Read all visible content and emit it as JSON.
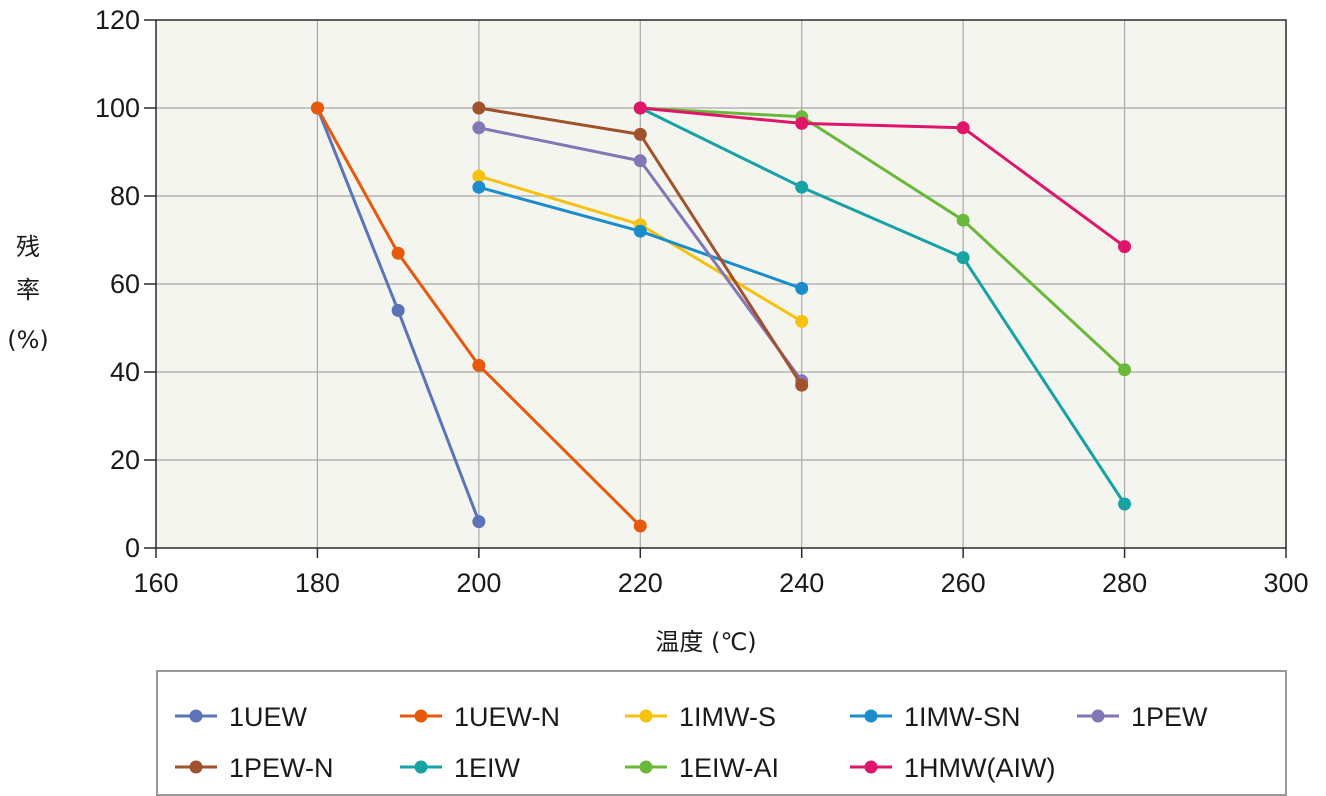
{
  "chart_data": {
    "type": "line",
    "xlabel": "温度 (℃)",
    "ylabel_chars": [
      "残",
      "率",
      "(%)"
    ],
    "xlim": [
      160,
      300
    ],
    "ylim": [
      0,
      120
    ],
    "x_ticks": [
      160,
      180,
      200,
      220,
      240,
      260,
      280,
      300
    ],
    "y_ticks": [
      0,
      20,
      40,
      60,
      80,
      100,
      120
    ],
    "grid": true,
    "legend_position": "bottom",
    "background_color": "#f5f5f0",
    "series": [
      {
        "name": "1UEW",
        "color": "#5b74b8",
        "points": [
          [
            180,
            100
          ],
          [
            190,
            54
          ],
          [
            200,
            6
          ]
        ]
      },
      {
        "name": "1UEW-N",
        "color": "#e8590c",
        "points": [
          [
            180,
            100
          ],
          [
            190,
            67
          ],
          [
            200,
            41.5
          ],
          [
            220,
            5
          ]
        ]
      },
      {
        "name": "1IMW-S",
        "color": "#f7c20c",
        "points": [
          [
            200,
            84.5
          ],
          [
            220,
            73.5
          ],
          [
            240,
            51.5
          ]
        ]
      },
      {
        "name": "1IMW-SN",
        "color": "#1b8dcc",
        "points": [
          [
            200,
            82
          ],
          [
            220,
            72
          ],
          [
            240,
            59
          ]
        ]
      },
      {
        "name": "1PEW",
        "color": "#8276b5",
        "points": [
          [
            200,
            95.5
          ],
          [
            220,
            88
          ],
          [
            240,
            38
          ]
        ]
      },
      {
        "name": "1PEW-N",
        "color": "#a0522d",
        "points": [
          [
            200,
            100
          ],
          [
            220,
            94
          ],
          [
            240,
            37
          ]
        ]
      },
      {
        "name": "1EIW",
        "color": "#17a2a4",
        "points": [
          [
            220,
            100
          ],
          [
            240,
            82
          ],
          [
            260,
            66
          ],
          [
            280,
            10
          ]
        ]
      },
      {
        "name": "1EIW-AI",
        "color": "#6ab83a",
        "points": [
          [
            220,
            100
          ],
          [
            240,
            98
          ],
          [
            260,
            74.5
          ],
          [
            280,
            40.5
          ]
        ]
      },
      {
        "name": "1HMW(AIW)",
        "color": "#e0156a",
        "points": [
          [
            220,
            100
          ],
          [
            240,
            96.5
          ],
          [
            260,
            95.5
          ],
          [
            280,
            68.5
          ]
        ]
      }
    ]
  }
}
